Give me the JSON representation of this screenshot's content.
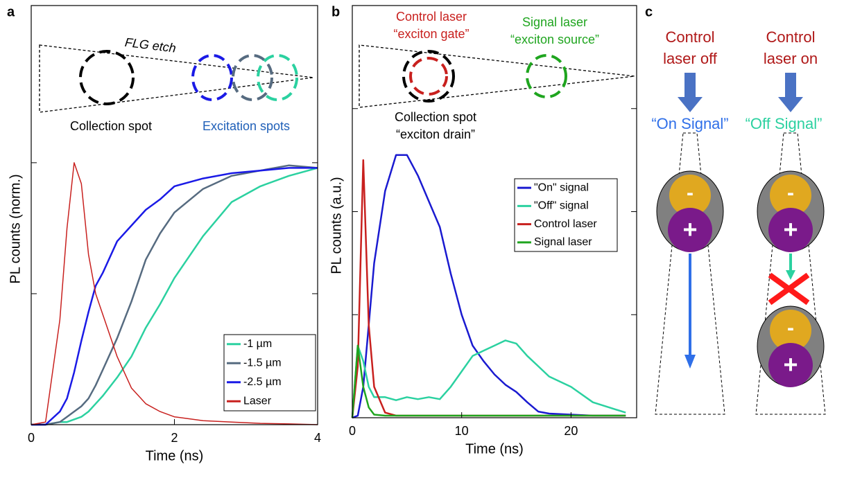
{
  "panel_labels": [
    "a",
    "b",
    "c"
  ],
  "chart_data": [
    {
      "type": "line",
      "xlabel": "Time (ns)",
      "ylabel": "PL counts (norm.)",
      "xlim": [
        0,
        4
      ],
      "xticks": [
        0,
        2,
        4
      ],
      "ylim": [
        0,
        1.6
      ],
      "yticks": [
        0.5,
        1
      ],
      "legend": "lower right",
      "annotations": [
        "FLG etch",
        "Collection spot",
        "Excitation spots"
      ],
      "x": [
        0,
        0.2,
        0.4,
        0.5,
        0.6,
        0.7,
        0.8,
        0.9,
        1.0,
        1.2,
        1.4,
        1.6,
        1.8,
        2.0,
        2.4,
        2.8,
        3.2,
        3.6,
        4.0
      ],
      "series": [
        {
          "name": "-1 µm",
          "color": "#2bd1a0",
          "values": [
            0,
            0,
            0.01,
            0.01,
            0.02,
            0.03,
            0.05,
            0.08,
            0.11,
            0.18,
            0.26,
            0.37,
            0.46,
            0.56,
            0.72,
            0.85,
            0.91,
            0.95,
            0.98
          ]
        },
        {
          "name": "-1.5 µm",
          "color": "#566b80",
          "values": [
            0,
            0,
            0.01,
            0.03,
            0.05,
            0.07,
            0.1,
            0.15,
            0.21,
            0.33,
            0.47,
            0.63,
            0.73,
            0.81,
            0.9,
            0.95,
            0.97,
            0.99,
            0.98
          ]
        },
        {
          "name": "-2.5 µm",
          "color": "#1a1ae6",
          "values": [
            0,
            0,
            0.05,
            0.1,
            0.2,
            0.32,
            0.43,
            0.53,
            0.58,
            0.7,
            0.76,
            0.82,
            0.86,
            0.91,
            0.94,
            0.96,
            0.97,
            0.98,
            0.98
          ]
        },
        {
          "name": "Laser",
          "color": "#c8201e",
          "values": [
            0,
            0.01,
            0.4,
            0.75,
            1.0,
            0.92,
            0.65,
            0.5,
            0.42,
            0.26,
            0.14,
            0.08,
            0.05,
            0.03,
            0.015,
            0.01,
            0.005,
            0.003,
            0
          ]
        }
      ]
    },
    {
      "type": "line",
      "xlabel": "Time (ns)",
      "ylabel": "PL counts (a.u.)",
      "xlim": [
        0,
        26
      ],
      "xticks": [
        0,
        10,
        20
      ],
      "ylim": [
        0,
        4
      ],
      "yticks": [
        1,
        2,
        3
      ],
      "legend": "center right",
      "annotations": [
        "Control laser",
        "“exciton gate”",
        "Signal laser",
        "“exciton source”",
        "Collection spot",
        "“exciton drain”"
      ],
      "x": [
        0,
        0.5,
        1,
        1.5,
        2,
        3,
        4,
        5,
        6,
        7,
        8,
        9,
        10,
        11,
        12,
        13,
        14,
        15,
        16,
        17,
        18,
        20,
        22,
        25
      ],
      "series": [
        {
          "name": "\"On\" signal",
          "color": "#1a1ad0",
          "values": [
            0,
            0.02,
            0.3,
            0.9,
            1.5,
            2.2,
            2.55,
            2.55,
            2.35,
            2.1,
            1.85,
            1.4,
            1.0,
            0.7,
            0.55,
            0.42,
            0.32,
            0.25,
            0.15,
            0.06,
            0.04,
            0.03,
            0.02,
            0.02
          ]
        },
        {
          "name": "\"Off\" signal",
          "color": "#2bd1a0",
          "values": [
            0,
            0.7,
            0.55,
            0.3,
            0.2,
            0.2,
            0.17,
            0.2,
            0.18,
            0.2,
            0.18,
            0.3,
            0.45,
            0.6,
            0.65,
            0.7,
            0.75,
            0.72,
            0.6,
            0.5,
            0.4,
            0.3,
            0.15,
            0.05
          ]
        },
        {
          "name": "Control laser",
          "color": "#c8201e",
          "values": [
            0,
            0.5,
            2.5,
            0.9,
            0.3,
            0.05,
            0.02,
            0.02,
            0.02,
            0.02,
            0.02,
            0.02,
            0.02,
            0.02,
            0.02,
            0.02,
            0.02,
            0.02,
            0.02,
            0.02,
            0.02,
            0.02,
            0.02,
            0.02
          ]
        },
        {
          "name": "Signal laser",
          "color": "#1fa51f",
          "values": [
            0,
            0.7,
            0.3,
            0.1,
            0.03,
            0.02,
            0.02,
            0.02,
            0.02,
            0.02,
            0.02,
            0.02,
            0.02,
            0.02,
            0.02,
            0.02,
            0.02,
            0.02,
            0.02,
            0.02,
            0.02,
            0.02,
            0.02,
            0.02
          ]
        }
      ]
    }
  ],
  "diagram": {
    "off_title": [
      "Control",
      "laser off"
    ],
    "on_title": [
      "Control",
      "laser on"
    ],
    "on_signal": "“On Signal”",
    "off_signal": "“Off Signal”",
    "electron": "-",
    "hole": "+"
  }
}
